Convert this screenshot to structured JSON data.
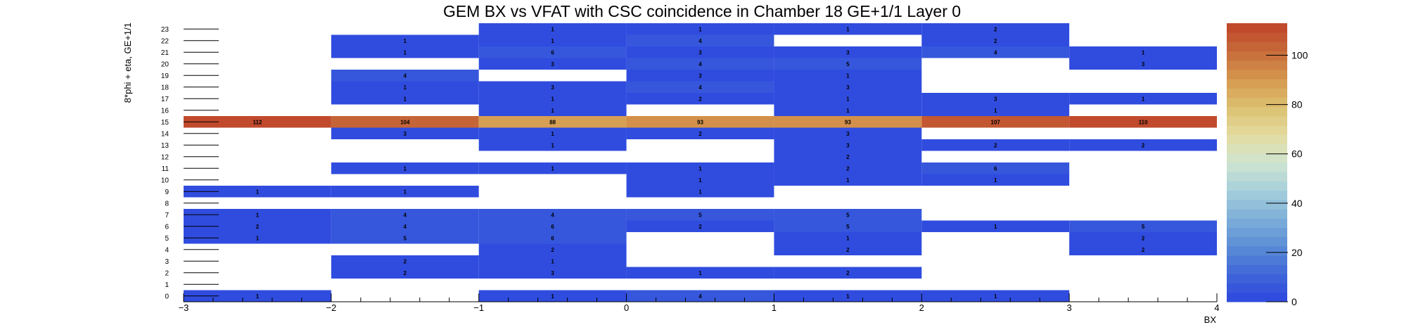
{
  "chart_data": {
    "type": "heatmap",
    "title": "GEM BX vs VFAT with CSC coincidence in Chamber 18 GE+1/1 Layer 0",
    "xlabel": "BX",
    "ylabel": "8*phi + eta, GE+1/1",
    "xlim": [
      -3,
      4
    ],
    "ylim": [
      0,
      24
    ],
    "x_bins": [
      -3,
      -2,
      -1,
      0,
      1,
      2,
      3,
      4
    ],
    "x_tick_labels": [
      "−3",
      "−2",
      "−1",
      "0",
      "1",
      "2",
      "3",
      "4"
    ],
    "y_tick_labels": [
      "0",
      "1",
      "2",
      "3",
      "4",
      "5",
      "6",
      "7",
      "8",
      "9",
      "10",
      "11",
      "12",
      "13",
      "14",
      "15",
      "16",
      "17",
      "18",
      "19",
      "20",
      "21",
      "22",
      "23"
    ],
    "zlim": [
      0,
      113
    ],
    "z_tick_values": [
      0,
      20,
      40,
      60,
      80,
      100
    ],
    "z_tick_labels": [
      "0",
      "20",
      "40",
      "60",
      "80",
      "100"
    ],
    "colorscale": [
      "#2d47e0",
      "#3f66d8",
      "#5b8ed6",
      "#7eaed8",
      "#a6cfdb",
      "#cfe4d0",
      "#e4dba0",
      "#dcc070",
      "#d6984e",
      "#c66a3a",
      "#c0432a"
    ],
    "grid": false,
    "cells": [
      {
        "x": -3,
        "y": 0,
        "value": 1
      },
      {
        "x": -1,
        "y": 0,
        "value": 1
      },
      {
        "x": 0,
        "y": 0,
        "value": 4
      },
      {
        "x": 1,
        "y": 0,
        "value": 1
      },
      {
        "x": 2,
        "y": 0,
        "value": 1
      },
      {
        "x": -2,
        "y": 2,
        "value": 2
      },
      {
        "x": -1,
        "y": 2,
        "value": 3
      },
      {
        "x": 0,
        "y": 2,
        "value": 1
      },
      {
        "x": 1,
        "y": 2,
        "value": 2
      },
      {
        "x": -2,
        "y": 3,
        "value": 2
      },
      {
        "x": -1,
        "y": 3,
        "value": 1
      },
      {
        "x": -1,
        "y": 4,
        "value": 2
      },
      {
        "x": 1,
        "y": 4,
        "value": 2
      },
      {
        "x": 3,
        "y": 4,
        "value": 2
      },
      {
        "x": -3,
        "y": 5,
        "value": 1
      },
      {
        "x": -2,
        "y": 5,
        "value": 5
      },
      {
        "x": -1,
        "y": 5,
        "value": 6
      },
      {
        "x": 1,
        "y": 5,
        "value": 1
      },
      {
        "x": 3,
        "y": 5,
        "value": 2
      },
      {
        "x": -3,
        "y": 6,
        "value": 2
      },
      {
        "x": -2,
        "y": 6,
        "value": 4
      },
      {
        "x": -1,
        "y": 6,
        "value": 6
      },
      {
        "x": 0,
        "y": 6,
        "value": 2
      },
      {
        "x": 1,
        "y": 6,
        "value": 5
      },
      {
        "x": 2,
        "y": 6,
        "value": 1
      },
      {
        "x": 3,
        "y": 6,
        "value": 5
      },
      {
        "x": -3,
        "y": 7,
        "value": 1
      },
      {
        "x": -2,
        "y": 7,
        "value": 4
      },
      {
        "x": -1,
        "y": 7,
        "value": 4
      },
      {
        "x": 0,
        "y": 7,
        "value": 5
      },
      {
        "x": 1,
        "y": 7,
        "value": 5
      },
      {
        "x": -3,
        "y": 9,
        "value": 1
      },
      {
        "x": -2,
        "y": 9,
        "value": 1
      },
      {
        "x": 0,
        "y": 9,
        "value": 1
      },
      {
        "x": 0,
        "y": 10,
        "value": 1
      },
      {
        "x": 1,
        "y": 10,
        "value": 1
      },
      {
        "x": 2,
        "y": 10,
        "value": 1
      },
      {
        "x": -2,
        "y": 11,
        "value": 1
      },
      {
        "x": -1,
        "y": 11,
        "value": 1
      },
      {
        "x": 0,
        "y": 11,
        "value": 1
      },
      {
        "x": 1,
        "y": 11,
        "value": 2
      },
      {
        "x": 2,
        "y": 11,
        "value": 6
      },
      {
        "x": 1,
        "y": 12,
        "value": 2
      },
      {
        "x": -1,
        "y": 13,
        "value": 1
      },
      {
        "x": 1,
        "y": 13,
        "value": 3
      },
      {
        "x": 2,
        "y": 13,
        "value": 2
      },
      {
        "x": 3,
        "y": 13,
        "value": 2
      },
      {
        "x": -2,
        "y": 14,
        "value": 3
      },
      {
        "x": -1,
        "y": 14,
        "value": 1
      },
      {
        "x": 0,
        "y": 14,
        "value": 2
      },
      {
        "x": 1,
        "y": 14,
        "value": 3
      },
      {
        "x": -3,
        "y": 15,
        "value": 112
      },
      {
        "x": -2,
        "y": 15,
        "value": 104
      },
      {
        "x": -1,
        "y": 15,
        "value": 88
      },
      {
        "x": 0,
        "y": 15,
        "value": 93
      },
      {
        "x": 1,
        "y": 15,
        "value": 93
      },
      {
        "x": 2,
        "y": 15,
        "value": 107
      },
      {
        "x": 3,
        "y": 15,
        "value": 110
      },
      {
        "x": -1,
        "y": 16,
        "value": 1
      },
      {
        "x": 1,
        "y": 16,
        "value": 1
      },
      {
        "x": 2,
        "y": 16,
        "value": 1
      },
      {
        "x": -2,
        "y": 17,
        "value": 1
      },
      {
        "x": -1,
        "y": 17,
        "value": 1
      },
      {
        "x": 0,
        "y": 17,
        "value": 2
      },
      {
        "x": 1,
        "y": 17,
        "value": 1
      },
      {
        "x": 2,
        "y": 17,
        "value": 3
      },
      {
        "x": 3,
        "y": 17,
        "value": 1
      },
      {
        "x": -2,
        "y": 18,
        "value": 1
      },
      {
        "x": -1,
        "y": 18,
        "value": 3
      },
      {
        "x": 0,
        "y": 18,
        "value": 4
      },
      {
        "x": 1,
        "y": 18,
        "value": 3
      },
      {
        "x": -2,
        "y": 19,
        "value": 4
      },
      {
        "x": 0,
        "y": 19,
        "value": 3
      },
      {
        "x": 1,
        "y": 19,
        "value": 1
      },
      {
        "x": -1,
        "y": 20,
        "value": 3
      },
      {
        "x": 0,
        "y": 20,
        "value": 4
      },
      {
        "x": 1,
        "y": 20,
        "value": 5
      },
      {
        "x": 3,
        "y": 20,
        "value": 3
      },
      {
        "x": -2,
        "y": 21,
        "value": 1
      },
      {
        "x": -1,
        "y": 21,
        "value": 6
      },
      {
        "x": 0,
        "y": 21,
        "value": 3
      },
      {
        "x": 1,
        "y": 21,
        "value": 3
      },
      {
        "x": 2,
        "y": 21,
        "value": 4
      },
      {
        "x": 3,
        "y": 21,
        "value": 1
      },
      {
        "x": -2,
        "y": 22,
        "value": 1
      },
      {
        "x": -1,
        "y": 22,
        "value": 1
      },
      {
        "x": 0,
        "y": 22,
        "value": 4
      },
      {
        "x": 2,
        "y": 22,
        "value": 2
      },
      {
        "x": -1,
        "y": 23,
        "value": 1
      },
      {
        "x": 0,
        "y": 23,
        "value": 1
      },
      {
        "x": 1,
        "y": 23,
        "value": 1
      },
      {
        "x": 2,
        "y": 23,
        "value": 2
      }
    ]
  }
}
